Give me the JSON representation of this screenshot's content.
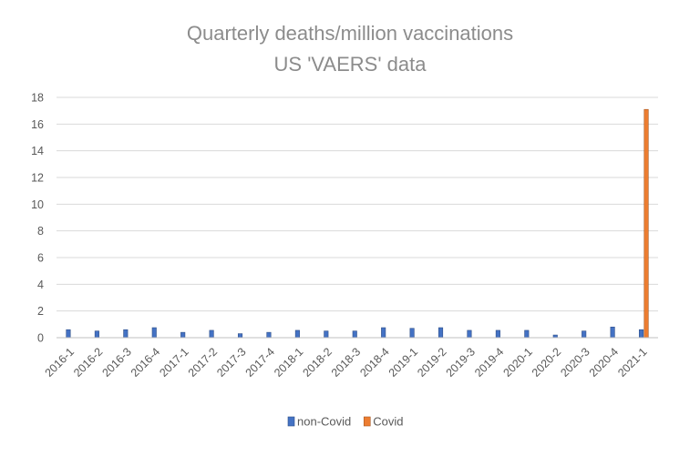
{
  "chart_data": {
    "type": "bar",
    "title": [
      "Quarterly deaths/million vaccinations",
      "US 'VAERS' data"
    ],
    "xlabel": "",
    "ylabel": "",
    "ylim": [
      0,
      18
    ],
    "yticks": [
      0,
      2,
      4,
      6,
      8,
      10,
      12,
      14,
      16,
      18
    ],
    "grid": true,
    "legend_position": "bottom",
    "categories": [
      "2016-1",
      "2016-2",
      "2016-3",
      "2016-4",
      "2017-1",
      "2017-2",
      "2017-3",
      "2017-4",
      "2018-1",
      "2018-2",
      "2018-3",
      "2018-4",
      "2019-1",
      "2019-2",
      "2019-3",
      "2019-4",
      "2020-1",
      "2020-2",
      "2020-3",
      "2020-4",
      "2021-1"
    ],
    "series": [
      {
        "name": "non-Covid",
        "color": "#4472c4",
        "values": [
          0.6,
          0.5,
          0.6,
          0.75,
          0.4,
          0.55,
          0.3,
          0.4,
          0.55,
          0.5,
          0.5,
          0.75,
          0.7,
          0.75,
          0.55,
          0.55,
          0.55,
          0.2,
          0.5,
          0.8,
          0.6
        ]
      },
      {
        "name": "Covid",
        "color": "#ed7d31",
        "values": [
          null,
          null,
          null,
          null,
          null,
          null,
          null,
          null,
          null,
          null,
          null,
          null,
          null,
          null,
          null,
          null,
          null,
          null,
          null,
          null,
          17.1
        ]
      }
    ]
  }
}
